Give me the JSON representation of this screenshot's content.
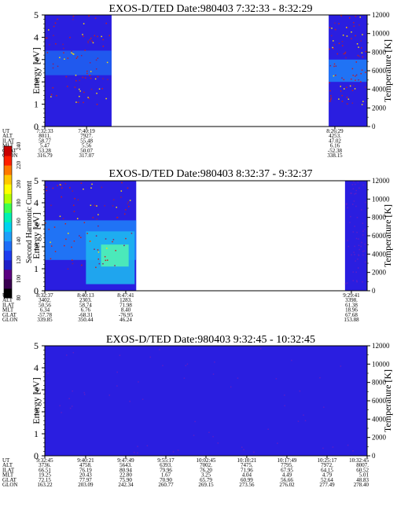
{
  "colorbar": {
    "label": "Second Harmonic Current",
    "ticks": [
      80,
      100,
      120,
      140,
      160,
      180,
      200,
      220,
      240
    ],
    "range": [
      80,
      240
    ],
    "colors": [
      "#000000",
      "#3a0050",
      "#5a0080",
      "#1f1fc8",
      "#1e3cf0",
      "#1e6ef8",
      "#1ea0fa",
      "#00d2f0",
      "#00f0b4",
      "#3cff50",
      "#b4ff00",
      "#ffff00",
      "#ffc800",
      "#ff7800",
      "#ff1e00",
      "#c80000"
    ]
  },
  "chart_data": [
    {
      "type": "heatmap",
      "title": "EXOS-D/TED   Date:980403  7:32:33 - 8:32:29",
      "ylabel": "Energy [eV]",
      "ylabel2": "Temperature [K]",
      "ylim": [
        0,
        5
      ],
      "y_ticks": [
        0,
        1,
        2,
        3,
        4,
        5
      ],
      "ylim2": [
        0,
        12000
      ],
      "y2_ticks": [
        0,
        2000,
        4000,
        6000,
        8000,
        10000,
        12000
      ],
      "time_range": [
        "7:32:33",
        "8:32:29"
      ],
      "data_segments": [
        {
          "from": "7:32:33",
          "to": "7:44:58",
          "band_ev": [
            2.3,
            3.4
          ],
          "background": "#2a1ee0",
          "band": "#1e64f0"
        },
        {
          "from": "8:25:20",
          "to": "8:32:29",
          "band_ev": [
            2.0,
            3.0
          ],
          "background": "#2a1ee0",
          "band": "#1e82f8"
        }
      ],
      "table": {
        "row_labels": [
          "UT",
          "ALT",
          "ILAT",
          "MLT",
          "GLAT",
          "GLON"
        ],
        "columns": [
          {
            "time": "7:32:33",
            "values": [
              "7:32:33",
              "8011.",
              "58.77",
              "5.47",
              "53.28",
              "316.79"
            ]
          },
          {
            "time": "7:40:19",
            "values": [
              "7:40:19",
              "7927.",
              "55.48",
              "5.56",
              "50.07",
              "317.07"
            ]
          },
          {
            "time": "8:26:29",
            "values": [
              "8:26:29",
              "4253.",
              "47.02",
              "6.16",
              "-52.38",
              "338.15"
            ]
          }
        ]
      }
    },
    {
      "type": "heatmap",
      "title": "EXOS-D/TED   Date:980403  8:32:37 - 9:32:37",
      "ylabel": "Energy [eV]",
      "ylabel2": "Temperature [K]",
      "ylim": [
        0,
        5
      ],
      "y_ticks": [
        0,
        1,
        2,
        3,
        4,
        5
      ],
      "ylim2": [
        0,
        12000
      ],
      "y2_ticks": [
        0,
        2000,
        4000,
        6000,
        8000,
        10000,
        12000
      ],
      "time_range": [
        "8:32:37",
        "9:32:37"
      ],
      "data_segments": [
        {
          "from": "8:32:37",
          "to": "8:49:38",
          "band_ev": [
            1.4,
            3.2
          ],
          "background": "#2a1ee0",
          "band": "#1e82f8"
        },
        {
          "from": "9:28:30",
          "to": "9:32:37",
          "band_ev": [
            0,
            0
          ],
          "background": "#2a1ee0",
          "band": "#2a1ee0"
        }
      ],
      "table": {
        "row_labels": [
          "UT",
          "ALT",
          "ILAT",
          "MLT",
          "GLAT",
          "GLON"
        ],
        "columns": [
          {
            "time": "8:32:37",
            "values": [
              "8:32:37",
              "3402.",
              "50.56",
              "6.34",
              "-57.78",
              "339.85"
            ]
          },
          {
            "time": "8:40:13",
            "values": [
              "8:40:13",
              "2303.",
              "58.74",
              "6.76",
              "-68.31",
              "350.44"
            ]
          },
          {
            "time": "8:47:41",
            "values": [
              "8:47:41",
              "1283.",
              "71.98",
              "8.40",
              "-76.95",
              "46.24"
            ]
          },
          {
            "time": "9:29:41",
            "values": [
              "9:29:41",
              "3398.",
              "61.38",
              "18.96",
              "67.68",
              "153.88"
            ]
          }
        ]
      }
    },
    {
      "type": "heatmap",
      "title": "EXOS-D/TED   Date:980403  9:32:45 - 10:32:45",
      "ylabel": "Energy [eV]",
      "ylabel2": "Temperature [K]",
      "ylim": [
        0,
        5
      ],
      "y_ticks": [
        0,
        1,
        2,
        3,
        4,
        5
      ],
      "ylim2": [
        0,
        12000
      ],
      "y2_ticks": [
        0,
        2000,
        4000,
        6000,
        8000,
        10000,
        12000
      ],
      "time_range": [
        "9:32:45",
        "10:32:45"
      ],
      "data_segments": [
        {
          "from": "9:32:45",
          "to": "10:32:45",
          "band_ev": [
            0,
            0
          ],
          "background": "#2a1ee0",
          "band": "#2a1ee0"
        }
      ],
      "table": {
        "row_labels": [
          "UT",
          "ALT",
          "ILAT",
          "MLT",
          "GLAT",
          "GLON"
        ],
        "columns": [
          {
            "time": "9:32:45",
            "values": [
              "9:32:45",
              "3736.",
              "66.51",
              "19.25",
              "72.15",
              "163.22"
            ]
          },
          {
            "time": "9:40:21",
            "values": [
              "9:40:21",
              "4758.",
              "76.19",
              "20.43",
              "77.97",
              "203.09"
            ]
          },
          {
            "time": "9:47:49",
            "values": [
              "9:47:49",
              "5643.",
              "80.94",
              "22.80",
              "75.90",
              "242.34"
            ]
          },
          {
            "time": "9:55:17",
            "values": [
              "9:55:17",
              "6393.",
              "79.96",
              "1.67",
              "70.90",
              "260.77"
            ]
          },
          {
            "time": "10:02:45",
            "values": [
              "10:02:45",
              "7002.",
              "76.20",
              "3.25",
              "65.79",
              "269.15"
            ]
          },
          {
            "time": "10:10:21",
            "values": [
              "10:10:21",
              "7475.",
              "71.96",
              "4.04",
              "60.99",
              "273.56"
            ]
          },
          {
            "time": "10:17:49",
            "values": [
              "10:17:49",
              "7795.",
              "67.95",
              "4.49",
              "56.66",
              "276.02"
            ]
          },
          {
            "time": "10:25:17",
            "values": [
              "10:25:17",
              "7972.",
              "64.15",
              "4.79",
              "52.64",
              "277.49"
            ]
          },
          {
            "time": "10:32:45",
            "values": [
              "10:32:45",
              "8007.",
              "60.52",
              "5.01",
              "48.83",
              "278.40"
            ]
          }
        ]
      }
    }
  ]
}
